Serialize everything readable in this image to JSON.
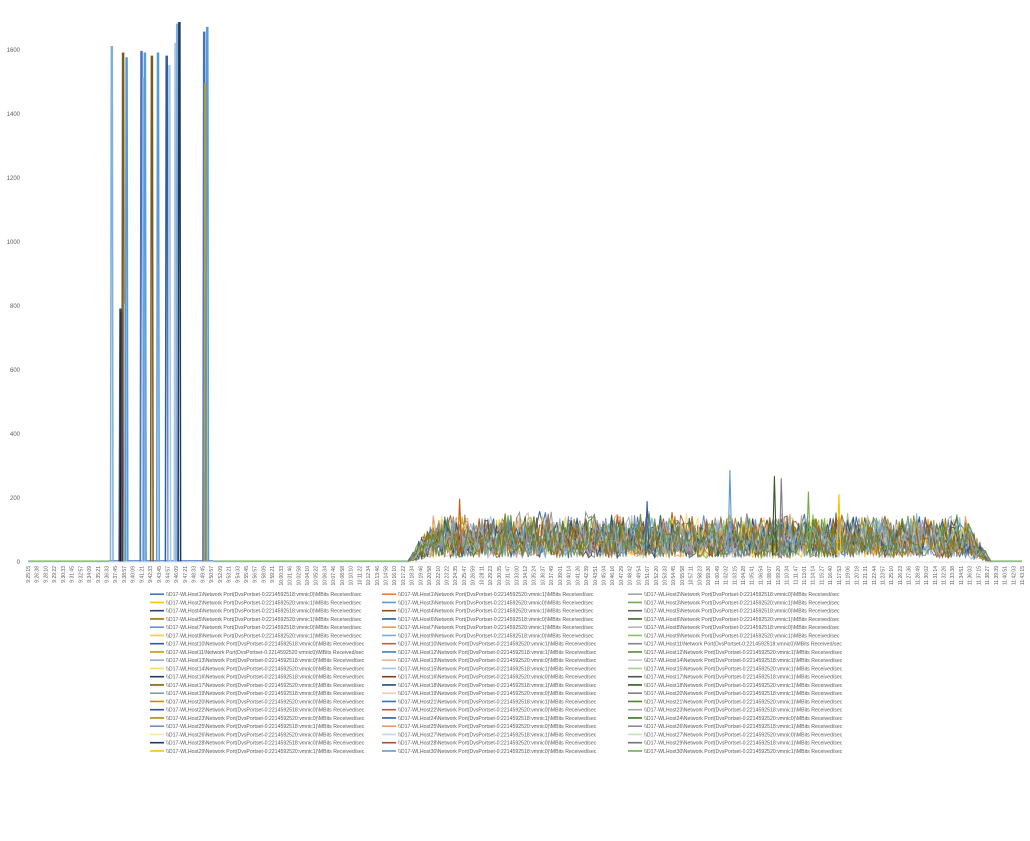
{
  "chart_data": {
    "type": "line",
    "title": "",
    "xlabel": "",
    "ylabel": "",
    "ylim": [
      0,
      1600
    ],
    "y_ticks": [
      0,
      200,
      400,
      600,
      800,
      1000,
      1200,
      1400,
      1600
    ],
    "grid": false,
    "legend_position": "bottom",
    "x_ticks": [
      "9:25:15",
      "9:26:38",
      "9:28:10",
      "9:29:22",
      "9:30:33",
      "9:31:45",
      "9:32:57",
      "9:34:09",
      "9:35:21",
      "9:36:33",
      "9:37:45",
      "9:38:57",
      "9:40:09",
      "9:41:21",
      "9:42:33",
      "9:43:45",
      "9:44:57",
      "9:46:09",
      "9:47:21",
      "9:48:33",
      "9:49:45",
      "9:50:57",
      "9:52:09",
      "9:53:21",
      "9:54:33",
      "9:55:45",
      "9:56:57",
      "9:58:09",
      "9:59:21",
      "10:00:33",
      "10:01:46",
      "10:02:58",
      "10:04:10",
      "10:05:22",
      "10:06:34",
      "10:07:46",
      "10:08:58",
      "10:10:10",
      "10:11:22",
      "10:12:34",
      "10:13:46",
      "10:14:58",
      "10:16:10",
      "10:17:22",
      "10:18:34",
      "10:19:46",
      "10:20:58",
      "10:22:10",
      "10:23:22",
      "10:24:35",
      "10:25:47",
      "10:26:59",
      "10:28:11",
      "10:29:23",
      "10:30:35",
      "10:31:47",
      "10:33:00",
      "10:34:12",
      "10:35:24",
      "10:36:37",
      "10:37:49",
      "10:39:01",
      "10:40:14",
      "10:41:26",
      "10:42:39",
      "10:43:51",
      "10:45:04",
      "10:46:16",
      "10:47:29",
      "10:48:42",
      "10:49:54",
      "10:51:07",
      "10:52:20",
      "10:53:33",
      "10:54:45",
      "10:55:58",
      "10:57:11",
      "10:58:23",
      "10:59:36",
      "11:00:49",
      "11:02:02",
      "11:03:15",
      "11:04:28",
      "11:05:41",
      "11:06:54",
      "11:08:07",
      "11:09:20",
      "11:10:34",
      "11:11:47",
      "11:13:01",
      "11:14:14",
      "11:15:27",
      "11:16:40",
      "11:17:53",
      "11:19:06",
      "11:20:18",
      "11:21:31",
      "11:22:44",
      "11:23:57",
      "11:25:10",
      "11:26:23",
      "11:27:36",
      "11:28:49",
      "11:30:02",
      "11:31:14",
      "11:32:26",
      "11:33:38",
      "11:34:51",
      "11:36:03",
      "11:37:15",
      "11:38:27",
      "11:39:39",
      "11:40:51",
      "11:42:03",
      "11:43:15"
    ],
    "spikes": [
      {
        "x": 9.6,
        "value": 1610,
        "color": "#7eb0d9"
      },
      {
        "x": 10.6,
        "value": 790,
        "color": "#2e4a7a"
      },
      {
        "x": 10.75,
        "value": 780,
        "color": "#1a1a40"
      },
      {
        "x": 10.9,
        "value": 1590,
        "color": "#7b5a1e"
      },
      {
        "x": 11.15,
        "value": 805,
        "color": "#a9c6e6"
      },
      {
        "x": 11.3,
        "value": 1575,
        "color": "#5b9bd5"
      },
      {
        "x": 13.0,
        "value": 1595,
        "color": "#4472c4"
      },
      {
        "x": 13.25,
        "value": 1510,
        "color": "#a9c6e6"
      },
      {
        "x": 13.4,
        "value": 1590,
        "color": "#5b9bd5"
      },
      {
        "x": 14.2,
        "value": 1580,
        "color": "#7b5a1e"
      },
      {
        "x": 14.9,
        "value": 1590,
        "color": "#5b9bd5"
      },
      {
        "x": 15.9,
        "value": 1580,
        "color": "#2e5c9e"
      },
      {
        "x": 16.2,
        "value": 1550,
        "color": "#a9c6e6"
      },
      {
        "x": 16.9,
        "value": 1620,
        "color": "#a9c6e6"
      },
      {
        "x": 17.1,
        "value": 1680,
        "color": "#7eb0d9"
      },
      {
        "x": 17.35,
        "value": 1685,
        "color": "#1f3864"
      },
      {
        "x": 20.2,
        "value": 1655,
        "color": "#4472c4"
      },
      {
        "x": 20.35,
        "value": 1495,
        "color": "#c5a21a"
      },
      {
        "x": 20.55,
        "value": 1670,
        "color": "#5b9bd5"
      }
    ],
    "activity": {
      "x_start": 43.5,
      "x_end": 110.5,
      "typical_range": [
        0,
        170
      ],
      "peaks": [
        {
          "x": 49.5,
          "value": 198,
          "color": "#c55a11"
        },
        {
          "x": 71.0,
          "value": 190,
          "color": "#2e5c9e"
        },
        {
          "x": 80.5,
          "value": 287,
          "color": "#5b9bd5"
        },
        {
          "x": 85.6,
          "value": 268,
          "color": "#375623"
        },
        {
          "x": 86.4,
          "value": 262,
          "color": "#7f7f7f"
        },
        {
          "x": 89.5,
          "value": 220,
          "color": "#70ad47"
        },
        {
          "x": 93.0,
          "value": 212,
          "color": "#ffc000"
        }
      ]
    },
    "series": [
      {
        "name": "\\\\D17-WLHost1\\Network Port(DvsPortset-0:2214592518:vmnic0)\\MBits Received/sec",
        "color": "#4472c4"
      },
      {
        "name": "\\\\D17-WLHost1\\Network Port(DvsPortset-0:2214592520:vmnic1)\\MBits Received/sec",
        "color": "#ed7d31"
      },
      {
        "name": "\\\\D17-WLHost2\\Network Port(DvsPortset-0:2214592518:vmnic0)\\MBits Received/sec",
        "color": "#a5a5a5"
      },
      {
        "name": "\\\\D17-WLHost2\\Network Port(DvsPortset-0:2214592520:vmnic1)\\MBits Received/sec",
        "color": "#ffc000"
      },
      {
        "name": "\\\\D17-WLHost3\\Network Port(DvsPortset-0:2214592520:vmnic0)\\MBits Received/sec",
        "color": "#5b9bd5"
      },
      {
        "name": "\\\\D17-WLHost3\\Network Port(DvsPortset-0:2214592520:vmnic1)\\MBits Received/sec",
        "color": "#70ad47"
      },
      {
        "name": "\\\\D17-WLHost4\\Network Port(DvsPortset-0:2214592518:vmnic0)\\MBits Received/sec",
        "color": "#264478"
      },
      {
        "name": "\\\\D17-WLHost4\\Network Port(DvsPortset-0:2214592520:vmnic1)\\MBits Received/sec",
        "color": "#9e480e"
      },
      {
        "name": "\\\\D17-WLHost5\\Network Port(DvsPortset-0:2214592518:vmnic0)\\MBits Received/sec",
        "color": "#636363"
      },
      {
        "name": "\\\\D17-WLHost5\\Network Port(DvsPortset-0:2214592520:vmnic1)\\MBits Received/sec",
        "color": "#997300"
      },
      {
        "name": "\\\\D17-WLHost6\\Network Port(DvsPortset-0:2214592518:vmnic0)\\MBits Received/sec",
        "color": "#255e91"
      },
      {
        "name": "\\\\D17-WLHost6\\Network Port(DvsPortset-0:2214592520:vmnic1)\\MBits Received/sec",
        "color": "#43682b"
      },
      {
        "name": "\\\\D17-WLHost7\\Network Port(DvsPortset-0:2214592518:vmnic0)\\MBits Received/sec",
        "color": "#698ed0"
      },
      {
        "name": "\\\\D17-WLHost7\\Network Port(DvsPortset-0:2214592520:vmnic1)\\MBits Received/sec",
        "color": "#f1975a"
      },
      {
        "name": "\\\\D17-WLHost8\\Network Port(DvsPortset-0:2214592518:vmnic0)\\MBits Received/sec",
        "color": "#b7b7b7"
      },
      {
        "name": "\\\\D17-WLHost8\\Network Port(DvsPortset-0:2214592520:vmnic1)\\MBits Received/sec",
        "color": "#ffcd33"
      },
      {
        "name": "\\\\D17-WLHost9\\Network Port(DvsPortset-0:2214592518:vmnic0)\\MBits Received/sec",
        "color": "#7cafdd"
      },
      {
        "name": "\\\\D17-WLHost9\\Network Port(DvsPortset-0:2214592520:vmnic1)\\MBits Received/sec",
        "color": "#8cc168"
      },
      {
        "name": "\\\\D17-WLHost10\\Network Port(DvsPortset-0:2214592518:vmnic0)\\MBits Received/sec",
        "color": "#335aa1"
      },
      {
        "name": "\\\\D17-WLHost10\\Network Port(DvsPortset-0:2214592520:vmnic1)\\MBits Received/sec",
        "color": "#d26012"
      },
      {
        "name": "\\\\D17-WLHost11\\Network Port(DvsPortset-0:2214592518:vmnic0)\\MBits Received/sec",
        "color": "#848484"
      },
      {
        "name": "\\\\D17-WLHost11\\Network Port(DvsPortset-0:2214592520:vmnic0)\\MBits Received/sec",
        "color": "#cc9a00"
      },
      {
        "name": "\\\\D17-WLHost12\\Network Port(DvsPortset-0:2214592518:vmnic1)\\MBits Received/sec",
        "color": "#3a7dbe"
      },
      {
        "name": "\\\\D17-WLHost12\\Network Port(DvsPortset-0:2214592520:vmnic1)\\MBits Received/sec",
        "color": "#5a8a39"
      },
      {
        "name": "\\\\D17-WLHost13\\Network Port(DvsPortset-0:2214592518:vmnic0)\\MBits Received/sec",
        "color": "#8faadc"
      },
      {
        "name": "\\\\D17-WLHost13\\Network Port(DvsPortset-0:2214592520:vmnic0)\\MBits Received/sec",
        "color": "#f4b183"
      },
      {
        "name": "\\\\D17-WLHost14\\Network Port(DvsPortset-0:2214592518:vmnic1)\\MBits Received/sec",
        "color": "#c9c9c9"
      },
      {
        "name": "\\\\D17-WLHost14\\Network Port(DvsPortset-0:2214592520:vmnic0)\\MBits Received/sec",
        "color": "#ffd966"
      },
      {
        "name": "\\\\D17-WLHost15\\Network Port(DvsPortset-0:2214592518:vmnic1)\\MBits Received/sec",
        "color": "#9dc3e6"
      },
      {
        "name": "\\\\D17-WLHost15\\Network Port(DvsPortset-0:2214592520:vmnic1)\\MBits Received/sec",
        "color": "#a9d18e"
      },
      {
        "name": "\\\\D17-WLHost16\\Network Port(DvsPortset-0:2214592518:vmnic0)\\MBits Received/sec",
        "color": "#1f3864"
      },
      {
        "name": "\\\\D17-WLHost16\\Network Port(DvsPortset-0:2214592520:vmnic0)\\MBits Received/sec",
        "color": "#843c0c"
      },
      {
        "name": "\\\\D17-WLHost17\\Network Port(DvsPortset-0:2214592518:vmnic1)\\MBits Received/sec",
        "color": "#525252"
      },
      {
        "name": "\\\\D17-WLHost17\\Network Port(DvsPortset-0:2214592520:vmnic0)\\MBits Received/sec",
        "color": "#7f6000"
      },
      {
        "name": "\\\\D17-WLHost18\\Network Port(DvsPortset-0:2214592518:vmnic1)\\MBits Received/sec",
        "color": "#1f4e79"
      },
      {
        "name": "\\\\D17-WLHost18\\Network Port(DvsPortset-0:2214592520:vmnic1)\\MBits Received/sec",
        "color": "#375623"
      },
      {
        "name": "\\\\D17-WLHost19\\Network Port(DvsPortset-0:2214592518:vmnic0)\\MBits Received/sec",
        "color": "#8497b0"
      },
      {
        "name": "\\\\D17-WLHost19\\Network Port(DvsPortset-0:2214592520:vmnic0)\\MBits Received/sec",
        "color": "#f8cbad"
      },
      {
        "name": "\\\\D17-WLHost20\\Network Port(DvsPortset-0:2214592518:vmnic1)\\MBits Received/sec",
        "color": "#7f7f7f"
      },
      {
        "name": "\\\\D17-WLHost20\\Network Port(DvsPortset-0:2214592520:vmnic0)\\MBits Received/sec",
        "color": "#bf9000"
      },
      {
        "name": "\\\\D17-WLHost21\\Network Port(DvsPortset-0:2214592518:vmnic1)\\MBits Received/sec",
        "color": "#2e75b6"
      },
      {
        "name": "\\\\D17-WLHost21\\Network Port(DvsPortset-0:2214592520:vmnic1)\\MBits Received/sec",
        "color": "#548235"
      },
      {
        "name": "\\\\D17-WLHost22\\Network Port(DvsPortset-0:2214592518:vmnic0)\\MBits Received/sec",
        "color": "#2f5597"
      },
      {
        "name": "\\\\D17-WLHost22\\Network Port(DvsPortset-0:2214592520:vmnic0)\\MBits Received/sec",
        "color": "#c55a11"
      },
      {
        "name": "\\\\D17-WLHost23\\Network Port(DvsPortset-0:2214592518:vmnic1)\\MBits Received/sec",
        "color": "#a6a6a6"
      },
      {
        "name": "\\\\D17-WLHost23\\Network Port(DvsPortset-0:2214592520:vmnic0)\\MBits Received/sec",
        "color": "#b8860b"
      },
      {
        "name": "\\\\D17-WLHost24\\Network Port(DvsPortset-0:2214592518:vmnic1)\\MBits Received/sec",
        "color": "#2e5c9e"
      },
      {
        "name": "\\\\D17-WLHost24\\Network Port(DvsPortset-0:2214592520:vmnic0)\\MBits Received/sec",
        "color": "#38761d"
      },
      {
        "name": "\\\\D17-WLHost25\\Network Port(DvsPortset-0:2214592518:vmnic1)\\MBits Received/sec",
        "color": "#6f8fc9"
      },
      {
        "name": "\\\\D17-WLHost25\\Network Port(DvsPortset-0:2214592520:vmnic0)\\MBits Received/sec",
        "color": "#e89a63"
      },
      {
        "name": "\\\\D17-WLHost26\\Network Port(DvsPortset-0:2214592518:vmnic1)\\MBits Received/sec",
        "color": "#8c8c8c"
      },
      {
        "name": "\\\\D17-WLHost26\\Network Port(DvsPortset-0:2214592520:vmnic0)\\MBits Received/sec",
        "color": "#ffe699"
      },
      {
        "name": "\\\\D17-WLHost27\\Network Port(DvsPortset-0:2214592518:vmnic1)\\MBits Received/sec",
        "color": "#bdd7ee"
      },
      {
        "name": "\\\\D17-WLHost27\\Network Port(DvsPortset-0:2214592520:vmnic0)\\MBits Received/sec",
        "color": "#c5e0b4"
      },
      {
        "name": "\\\\D17-WLHost28\\Network Port(DvsPortset-0:2214592518:vmnic0)\\MBits Received/sec",
        "color": "#203864"
      },
      {
        "name": "\\\\D17-WLHost28\\Network Port(DvsPortset-0:2214592520:vmnic0)\\MBits Received/sec",
        "color": "#a0522d"
      },
      {
        "name": "\\\\D17-WLHost29\\Network Port(DvsPortset-0:2214592518:vmnic1)\\MBits Received/sec",
        "color": "#767171"
      },
      {
        "name": "\\\\D17-WLHost29\\Network Port(DvsPortset-0:2214592520:vmnic1)\\MBits Received/sec",
        "color": "#ffc000"
      },
      {
        "name": "\\\\D17-WLHost30\\Network Port(DvsPortset-0:2214592518:vmnic0)\\MBits Received/sec",
        "color": "#5b9bd5"
      },
      {
        "name": "\\\\D17-WLHost30\\Network Port(DvsPortset-0:2214592520:vmnic1)\\MBits Received/sec",
        "color": "#70ad47"
      }
    ]
  }
}
